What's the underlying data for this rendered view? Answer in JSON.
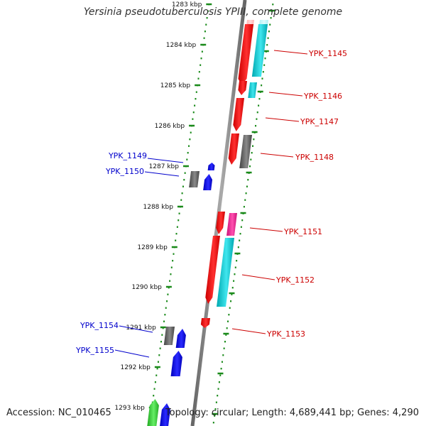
{
  "title": "Yersinia pseudotuberculosis YPIII, complete genome",
  "footer": {
    "accession": "Accession: NC_010465",
    "topology": "Topology: circular; Length: 4,689,441 bp; Genes: 4,290"
  },
  "colors": {
    "backbone": "#808080",
    "tick": "#1a8a1a",
    "tick_dot": "#1a8a1a",
    "label_red": "#cc0000",
    "label_blue": "#0000cc",
    "gene_red": "#ff0000",
    "gene_cyan": "#00c8d0",
    "gene_gray": "#666666",
    "gene_blue": "#0000ff",
    "gene_magenta": "#ff2a9a",
    "gene_green": "#33cc33"
  },
  "ticks": [
    "1283 kbp",
    "1284 kbp",
    "1285 kbp",
    "1286 kbp",
    "1287 kbp",
    "1288 kbp",
    "1289 kbp",
    "1290 kbp",
    "1291 kbp",
    "1292 kbp",
    "1293 kbp"
  ],
  "gene_labels": [
    {
      "text": "YPK_1145",
      "color": "red"
    },
    {
      "text": "YPK_1146",
      "color": "red"
    },
    {
      "text": "YPK_1147",
      "color": "red"
    },
    {
      "text": "YPK_1148",
      "color": "red"
    },
    {
      "text": "YPK_1149",
      "color": "blue"
    },
    {
      "text": "YPK_1150",
      "color": "blue"
    },
    {
      "text": "YPK_1151",
      "color": "red"
    },
    {
      "text": "YPK_1152",
      "color": "red"
    },
    {
      "text": "YPK_1153",
      "color": "red"
    },
    {
      "text": "YPK_1154",
      "color": "blue"
    },
    {
      "text": "YPK_1155",
      "color": "blue"
    }
  ]
}
